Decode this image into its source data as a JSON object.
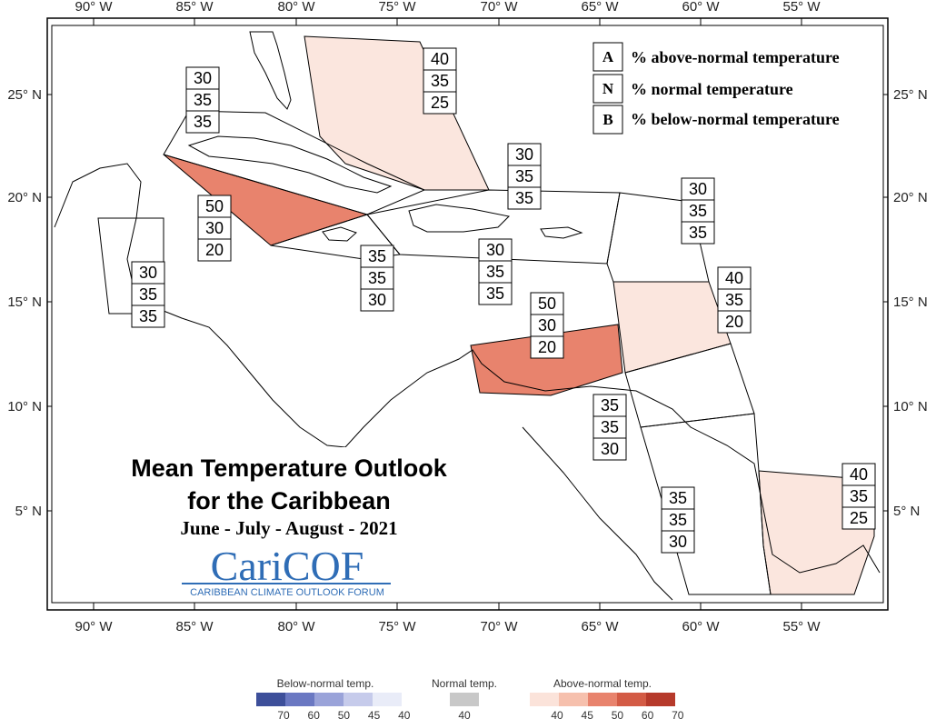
{
  "map": {
    "lon_labels": [
      "90° W",
      "85° W",
      "80° W",
      "75° W",
      "70° W",
      "65° W",
      "60° W",
      "55° W"
    ],
    "lat_labels": [
      "25° N",
      "20° N",
      "15° N",
      "10° N",
      "5° N"
    ]
  },
  "regions": [
    {
      "id": "bahamas",
      "probs": [
        "40",
        "35",
        "25"
      ],
      "category": "above",
      "level": 40
    },
    {
      "id": "cuba",
      "probs": [
        "30",
        "35",
        "35"
      ],
      "category": "none"
    },
    {
      "id": "cayman",
      "probs": [
        "50",
        "30",
        "20"
      ],
      "category": "above",
      "level": 50
    },
    {
      "id": "belize",
      "probs": [
        "30",
        "35",
        "35"
      ],
      "category": "none"
    },
    {
      "id": "jamaica",
      "probs": [
        "35",
        "35",
        "30"
      ],
      "category": "none"
    },
    {
      "id": "turks-caicos",
      "probs": [
        "30",
        "35",
        "35"
      ],
      "category": "none"
    },
    {
      "id": "hispaniola-pr",
      "probs": [
        "30",
        "35",
        "35"
      ],
      "category": "none"
    },
    {
      "id": "leeward",
      "probs": [
        "30",
        "35",
        "35"
      ],
      "category": "none"
    },
    {
      "id": "windward",
      "probs": [
        "40",
        "35",
        "20"
      ],
      "category": "above",
      "level": 40
    },
    {
      "id": "abc-islands",
      "probs": [
        "50",
        "30",
        "20"
      ],
      "category": "above",
      "level": 50
    },
    {
      "id": "trinidad",
      "probs": [
        "35",
        "35",
        "30"
      ],
      "category": "none"
    },
    {
      "id": "guyana",
      "probs": [
        "35",
        "35",
        "30"
      ],
      "category": "none"
    },
    {
      "id": "suriname-guiana",
      "probs": [
        "40",
        "35",
        "25"
      ],
      "category": "above",
      "level": 40
    }
  ],
  "legend": {
    "items": [
      {
        "letter": "A",
        "text": "% above-normal temperature"
      },
      {
        "letter": "N",
        "text": "% normal temperature"
      },
      {
        "letter": "B",
        "text": "% below-normal temperature"
      }
    ]
  },
  "title": {
    "line1": "Mean Temperature Outlook",
    "line2": "for the Caribbean",
    "period": "June - July - August - 2021"
  },
  "logo": {
    "name": "CariCOF",
    "subtitle": "CARIBBEAN CLIMATE OUTLOOK FORUM"
  },
  "scale": {
    "below": {
      "title": "Below-normal temp.",
      "ticks": [
        "70",
        "60",
        "50",
        "45",
        "40"
      ],
      "colors": [
        "#3d4f9a",
        "#6a78c2",
        "#9aa3d9",
        "#c6cbeb",
        "#e9ecf8"
      ]
    },
    "normal": {
      "title": "Normal temp.",
      "ticks": [
        "40"
      ],
      "colors": [
        "#c8c8c8"
      ]
    },
    "above": {
      "title": "Above-normal temp.",
      "ticks": [
        "40",
        "45",
        "50",
        "60",
        "70"
      ],
      "colors": [
        "#fbe3da",
        "#f6c0ad",
        "#e8836d",
        "#d35b45",
        "#b63a2b"
      ]
    }
  },
  "colors": {
    "above40": "#fbe6de",
    "above50": "#e8836d",
    "border": "#000000"
  }
}
